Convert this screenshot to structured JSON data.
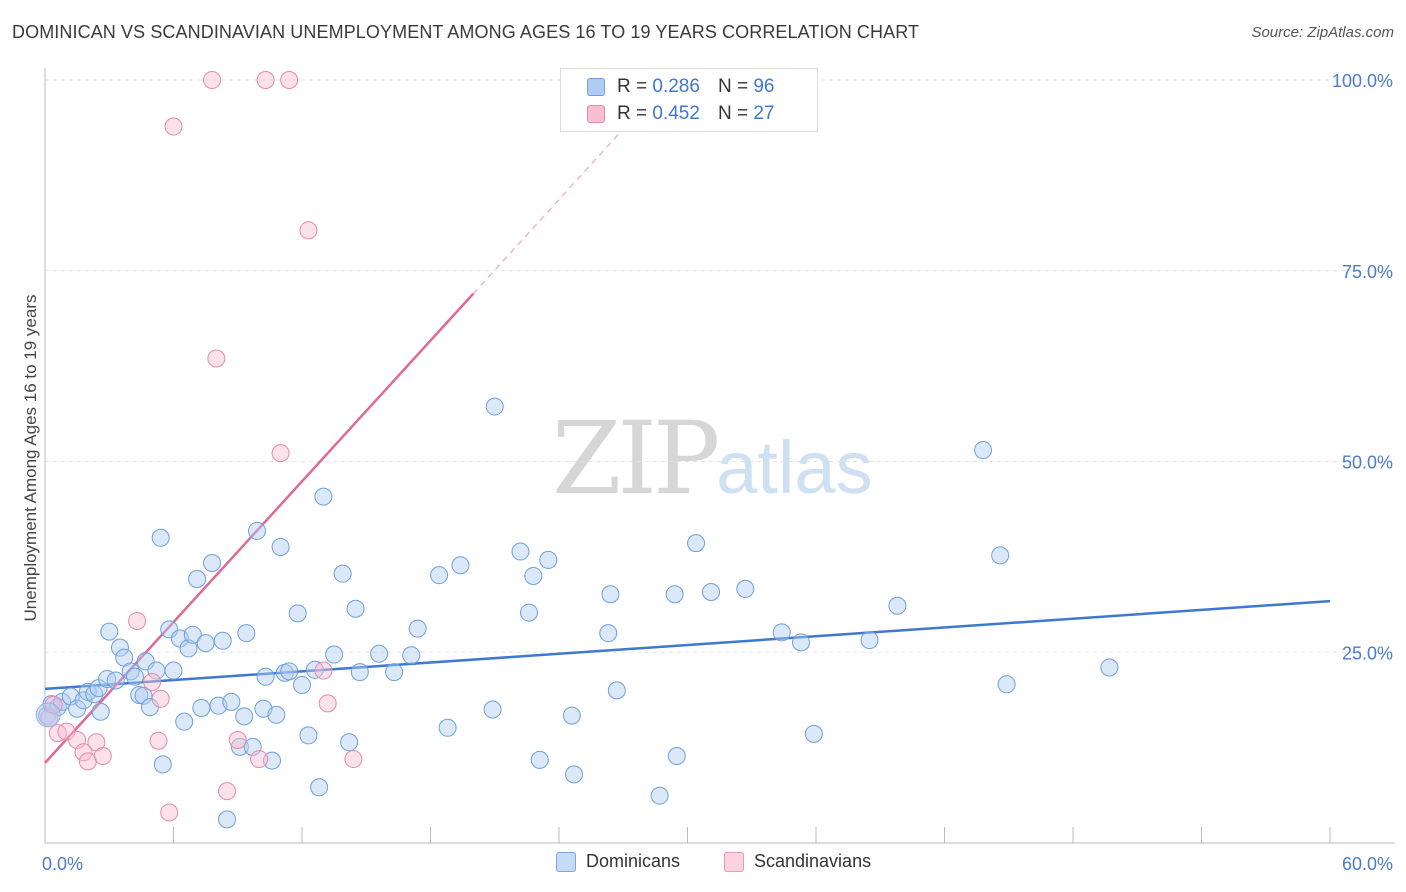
{
  "header": {
    "title": "DOMINICAN VS SCANDINAVIAN UNEMPLOYMENT AMONG AGES 16 TO 19 YEARS CORRELATION CHART",
    "source": "Source: ZipAtlas.com"
  },
  "watermark": {
    "part1": "ZIP",
    "part2": "atlas"
  },
  "legend": {
    "r_label": "R =",
    "n_label": "N =",
    "series": [
      {
        "name": "Dominicans",
        "r": "0.286",
        "n": "96",
        "fill": "#aecbf0",
        "stroke": "#6f9fdc"
      },
      {
        "name": "Scandinavians",
        "r": "0.452",
        "n": "27",
        "fill": "#f7bfd0",
        "stroke": "#e58aa8"
      }
    ]
  },
  "chart_data": {
    "type": "scatter",
    "title": "DOMINICAN VS SCANDINAVIAN UNEMPLOYMENT AMONG AGES 16 TO 19 YEARS CORRELATION CHART",
    "xlabel": "",
    "ylabel": "Unemployment Among Ages 16 to 19 years",
    "xlim": [
      0,
      60
    ],
    "ylim": [
      0,
      100
    ],
    "x_tick_labels": [
      "0.0%",
      "60.0%"
    ],
    "y_tick_labels": [
      "25.0%",
      "50.0%",
      "75.0%",
      "100.0%"
    ],
    "y_ticks": [
      25,
      50,
      75,
      100
    ],
    "grid": true,
    "legend_position": "top-center",
    "series": [
      {
        "name": "Dominicans",
        "color": "#3f78cf",
        "points": [
          [
            0.1,
            16.7
          ],
          [
            0.3,
            18.2
          ],
          [
            0.6,
            17.8
          ],
          [
            0.8,
            18.5
          ],
          [
            1.2,
            19.2
          ],
          [
            1.5,
            17.6
          ],
          [
            1.8,
            18.7
          ],
          [
            2.0,
            19.8
          ],
          [
            2.3,
            19.5
          ],
          [
            2.5,
            20.3
          ],
          [
            2.6,
            17.2
          ],
          [
            2.9,
            21.5
          ],
          [
            3.0,
            27.7
          ],
          [
            3.3,
            21.3
          ],
          [
            3.5,
            25.6
          ],
          [
            3.7,
            24.3
          ],
          [
            4.0,
            22.5
          ],
          [
            4.2,
            21.8
          ],
          [
            4.4,
            19.4
          ],
          [
            4.6,
            19.3
          ],
          [
            4.7,
            23.8
          ],
          [
            4.9,
            17.8
          ],
          [
            5.2,
            22.6
          ],
          [
            5.4,
            40.0
          ],
          [
            5.5,
            10.3
          ],
          [
            5.8,
            28.0
          ],
          [
            6.0,
            22.6
          ],
          [
            6.3,
            26.8
          ],
          [
            6.5,
            15.9
          ],
          [
            6.7,
            25.5
          ],
          [
            6.9,
            27.3
          ],
          [
            7.1,
            34.6
          ],
          [
            7.3,
            17.7
          ],
          [
            7.5,
            26.2
          ],
          [
            7.8,
            36.7
          ],
          [
            8.1,
            18.0
          ],
          [
            8.3,
            26.5
          ],
          [
            8.5,
            3.1
          ],
          [
            8.7,
            18.5
          ],
          [
            9.1,
            12.6
          ],
          [
            9.3,
            16.6
          ],
          [
            9.4,
            27.5
          ],
          [
            9.7,
            12.6
          ],
          [
            9.9,
            40.9
          ],
          [
            10.2,
            17.6
          ],
          [
            10.3,
            21.8
          ],
          [
            10.6,
            10.8
          ],
          [
            10.8,
            16.8
          ],
          [
            11.0,
            38.8
          ],
          [
            11.2,
            22.3
          ],
          [
            11.4,
            22.5
          ],
          [
            11.8,
            30.1
          ],
          [
            12.0,
            20.7
          ],
          [
            12.3,
            14.1
          ],
          [
            12.6,
            22.7
          ],
          [
            12.8,
            7.3
          ],
          [
            13.0,
            45.4
          ],
          [
            13.5,
            24.7
          ],
          [
            13.9,
            35.3
          ],
          [
            14.2,
            13.2
          ],
          [
            14.5,
            30.7
          ],
          [
            14.7,
            22.4
          ],
          [
            15.6,
            24.8
          ],
          [
            16.3,
            22.4
          ],
          [
            17.1,
            24.6
          ],
          [
            17.4,
            28.1
          ],
          [
            18.4,
            35.1
          ],
          [
            18.8,
            15.1
          ],
          [
            19.4,
            36.4
          ],
          [
            20.9,
            17.5
          ],
          [
            21.0,
            57.2
          ],
          [
            22.2,
            38.2
          ],
          [
            22.6,
            30.2
          ],
          [
            22.8,
            35.0
          ],
          [
            23.1,
            10.9
          ],
          [
            23.5,
            37.1
          ],
          [
            24.6,
            16.7
          ],
          [
            24.7,
            9.0
          ],
          [
            26.3,
            27.5
          ],
          [
            26.4,
            32.6
          ],
          [
            26.7,
            20.0
          ],
          [
            28.7,
            6.2
          ],
          [
            29.4,
            32.6
          ],
          [
            29.5,
            11.4
          ],
          [
            30.4,
            39.3
          ],
          [
            31.1,
            32.9
          ],
          [
            32.7,
            33.3
          ],
          [
            34.4,
            27.6
          ],
          [
            35.3,
            26.3
          ],
          [
            35.9,
            14.3
          ],
          [
            38.5,
            26.6
          ],
          [
            39.8,
            31.1
          ],
          [
            43.8,
            51.5
          ],
          [
            44.6,
            37.7
          ],
          [
            44.9,
            20.8
          ],
          [
            49.7,
            23.0
          ]
        ],
        "trend": {
          "x": [
            0,
            60
          ],
          "y": [
            20.2,
            31.7
          ]
        }
      },
      {
        "name": "Scandinavians",
        "color": "#e06892",
        "points": [
          [
            0.2,
            16.4
          ],
          [
            0.4,
            18.1
          ],
          [
            0.6,
            14.4
          ],
          [
            1.0,
            14.6
          ],
          [
            1.5,
            13.5
          ],
          [
            1.8,
            11.9
          ],
          [
            2.0,
            10.7
          ],
          [
            2.4,
            13.2
          ],
          [
            2.7,
            11.4
          ],
          [
            4.3,
            29.1
          ],
          [
            5.0,
            21.1
          ],
          [
            5.3,
            13.4
          ],
          [
            5.4,
            18.9
          ],
          [
            5.8,
            4.0
          ],
          [
            6.0,
            93.9
          ],
          [
            7.8,
            100.0
          ],
          [
            8.0,
            63.5
          ],
          [
            8.5,
            6.8
          ],
          [
            9.0,
            13.5
          ],
          [
            10.0,
            11.0
          ],
          [
            10.3,
            100.0
          ],
          [
            11.0,
            51.1
          ],
          [
            11.4,
            100.0
          ],
          [
            12.3,
            80.3
          ],
          [
            13.0,
            22.6
          ],
          [
            13.2,
            18.3
          ],
          [
            14.4,
            11.0
          ]
        ],
        "trend": {
          "x": [
            0,
            20
          ],
          "y": [
            10.5,
            72.0
          ]
        },
        "trend_dashed_extension": {
          "x": [
            20,
            27.3
          ],
          "y": [
            72.0,
            94.5
          ]
        }
      }
    ]
  }
}
